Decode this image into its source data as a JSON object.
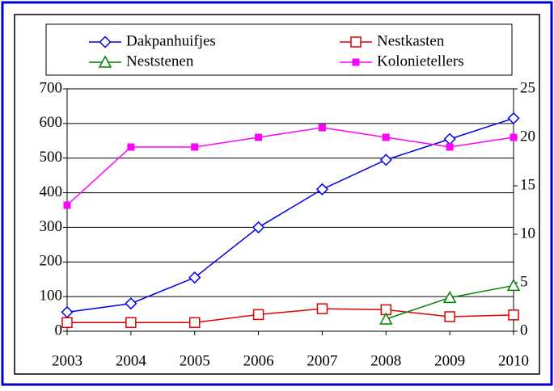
{
  "chart_data": {
    "type": "line",
    "x": [
      2003,
      2004,
      2005,
      2006,
      2007,
      2008,
      2009,
      2010
    ],
    "xlim": [
      2003,
      2010
    ],
    "xticks": [
      2003,
      2004,
      2005,
      2006,
      2007,
      2008,
      2009,
      2010
    ],
    "ylim": [
      0,
      700
    ],
    "yticks": [
      0,
      100,
      200,
      300,
      400,
      500,
      600,
      700
    ],
    "y2lim": [
      0,
      25
    ],
    "y2ticks": [
      0,
      5,
      10,
      15,
      20,
      25
    ],
    "grid": true,
    "legend": "top",
    "series": [
      {
        "name": "Dakpanhuifjes",
        "color": "#0000ee",
        "marker": "diamond",
        "values": [
          55,
          80,
          155,
          300,
          410,
          495,
          555,
          615
        ]
      },
      {
        "name": "Nestkasten",
        "color": "#e00000",
        "marker": "square",
        "values": [
          25,
          25,
          25,
          48,
          65,
          62,
          42,
          47
        ]
      },
      {
        "name": "Neststenen",
        "color": "#008000",
        "marker": "triangle",
        "values": [
          null,
          null,
          null,
          null,
          null,
          35,
          97,
          132
        ]
      },
      {
        "name": "Kolonietellers",
        "color": "#ff00ff",
        "marker": "filled-square",
        "axis": "y2",
        "values": [
          13,
          19,
          19,
          20,
          21,
          20,
          19,
          20
        ]
      }
    ]
  }
}
